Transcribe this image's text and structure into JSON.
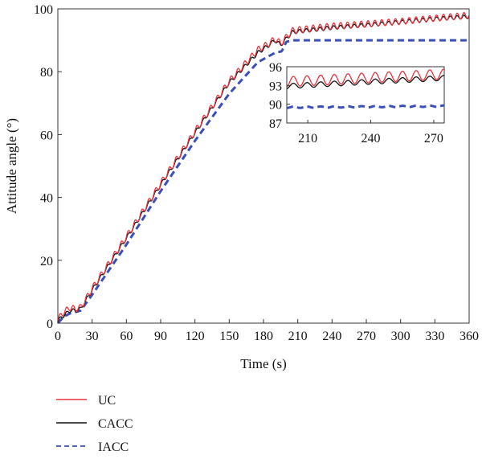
{
  "chart_data": {
    "type": "line",
    "title": "",
    "xlabel": "Time (s)",
    "ylabel": "Attitude angle (°)",
    "xlim": [
      0,
      360
    ],
    "ylim": [
      0,
      100
    ],
    "xticks": [
      "0",
      "30",
      "60",
      "90",
      "120",
      "150",
      "180",
      "210",
      "240",
      "270",
      "300",
      "330",
      "360"
    ],
    "yticks": [
      "0",
      "20",
      "40",
      "60",
      "80",
      "100"
    ],
    "grid": false,
    "legend_position": "bottom-left",
    "series": [
      {
        "name": "UC",
        "color": "#e8323c",
        "style": "solid",
        "x": [
          0,
          3,
          6,
          10,
          15,
          20,
          30,
          60,
          90,
          120,
          150,
          175,
          185,
          190,
          195,
          200,
          205,
          210,
          240,
          270,
          300,
          330,
          360
        ],
        "y": [
          0.5,
          3,
          3.5,
          5,
          4.5,
          5,
          11,
          27.5,
          44.5,
          61,
          77,
          87,
          89,
          90.5,
          89,
          91,
          93,
          93.3,
          94.5,
          95.2,
          96,
          97,
          98
        ],
        "oscillation": 1.0
      },
      {
        "name": "CACC",
        "color": "#111111",
        "style": "solid",
        "x": [
          0,
          3,
          6,
          10,
          15,
          20,
          30,
          60,
          90,
          120,
          150,
          175,
          185,
          190,
          195,
          200,
          205,
          210,
          240,
          270,
          300,
          330,
          360
        ],
        "y": [
          0.3,
          2,
          2.5,
          4,
          4,
          4.5,
          10.5,
          27,
          44,
          60.5,
          76.5,
          86,
          88.5,
          90,
          88.5,
          90.5,
          92.5,
          92.8,
          94,
          94.8,
          95.8,
          96.8,
          97.5
        ],
        "oscillation": 0.6
      },
      {
        "name": "IACC",
        "color": "#3a4fb8",
        "style": "dashed",
        "x": [
          0,
          5,
          10,
          20,
          30,
          60,
          90,
          120,
          150,
          175,
          190,
          196,
          200,
          205,
          210,
          240,
          270,
          300,
          330,
          360
        ],
        "y": [
          0,
          2,
          3,
          4,
          9,
          25,
          42,
          58,
          73,
          83,
          86,
          86.5,
          89.5,
          90,
          90,
          90,
          90,
          90,
          90,
          90
        ],
        "oscillation": 0
      }
    ],
    "inset": {
      "xlim": [
        200,
        275
      ],
      "ylim": [
        87,
        96
      ],
      "xticks": [
        "210",
        "240",
        "270"
      ],
      "yticks": [
        "96",
        "93",
        "90",
        "87"
      ],
      "series": [
        {
          "name": "UC",
          "x": [
            200,
            275
          ],
          "y": [
            93.6,
            94.8
          ],
          "oscillation": 0.8
        },
        {
          "name": "CACC",
          "x": [
            200,
            275
          ],
          "y": [
            92.9,
            94.2
          ],
          "oscillation": 0.4
        },
        {
          "name": "IACC",
          "x": [
            200,
            275
          ],
          "y": [
            89.5,
            89.7
          ],
          "oscillation": 0.1
        }
      ]
    }
  }
}
